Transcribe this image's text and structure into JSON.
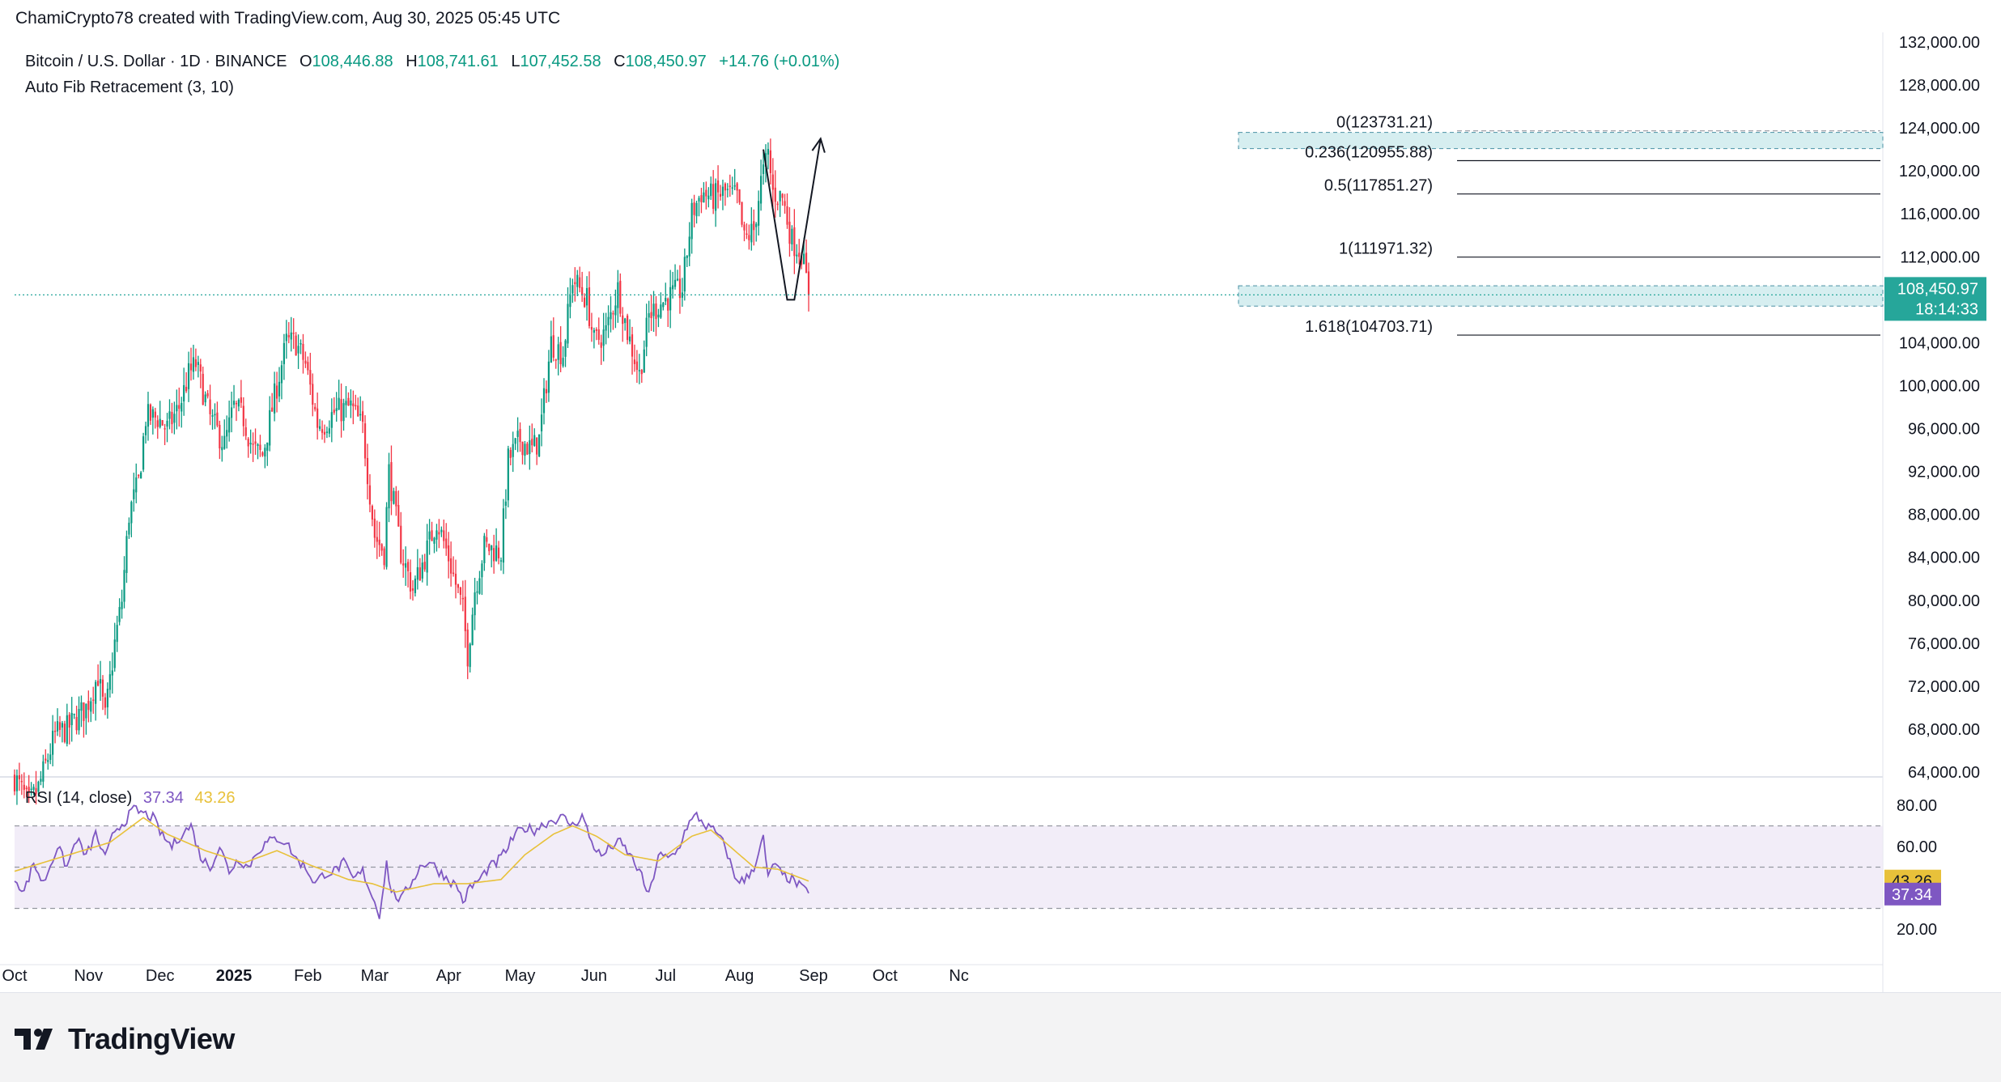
{
  "header": {
    "credit": "ChamiCrypto78 created with TradingView.com, Aug 30, 2025 05:45 UTC"
  },
  "legend": {
    "symbol": "Bitcoin / U.S. Dollar · 1D · BINANCE",
    "open_label": "O",
    "open": "108,446.88",
    "high_label": "H",
    "high": "108,741.61",
    "low_label": "L",
    "low": "107,452.58",
    "close_label": "C",
    "close": "108,450.97",
    "change": "+14.76 (+0.01%)",
    "indicator": "Auto Fib Retracement (3, 10)"
  },
  "rsi_legend": {
    "label": "RSI (14, close)",
    "rsi_value": "37.34",
    "ma_value": "43.26"
  },
  "price_badge": {
    "price": "108,450.97",
    "countdown": "18:14:33"
  },
  "rsi_badges": {
    "ma": "43.26",
    "rsi": "37.34"
  },
  "footer": {
    "brand": "TradingView"
  },
  "colors": {
    "up": "#089981",
    "down": "#f23645",
    "rsi": "#7e57c2",
    "rsi_ma": "#e8c13a",
    "rsi_band": "#ede7f6",
    "fib_zone": "#d6eef0",
    "price_badge": "#26a69a"
  },
  "chart_data": [
    {
      "type": "candlestick",
      "title": "Bitcoin / U.S. Dollar · 1D · BINANCE",
      "ylim": [
        64000,
        132000
      ],
      "y_ticks": [
        {
          "v": 132000,
          "label": "132,000.00"
        },
        {
          "v": 128000,
          "label": "128,000.00"
        },
        {
          "v": 124000,
          "label": "124,000.00"
        },
        {
          "v": 120000,
          "label": "120,000.00"
        },
        {
          "v": 116000,
          "label": "116,000.00"
        },
        {
          "v": 112000,
          "label": "112,000.00"
        },
        {
          "v": 104000,
          "label": "104,000.00"
        },
        {
          "v": 100000,
          "label": "100,000.00"
        },
        {
          "v": 96000,
          "label": "96,000.00"
        },
        {
          "v": 92000,
          "label": "92,000.00"
        },
        {
          "v": 88000,
          "label": "88,000.00"
        },
        {
          "v": 84000,
          "label": "84,000.00"
        },
        {
          "v": 80000,
          "label": "80,000.00"
        },
        {
          "v": 76000,
          "label": "76,000.00"
        },
        {
          "v": 72000,
          "label": "72,000.00"
        },
        {
          "v": 68000,
          "label": "68,000.00"
        },
        {
          "v": 64000,
          "label": "64,000.00"
        }
      ],
      "x_ticks": [
        {
          "day": 0,
          "label": "Oct"
        },
        {
          "day": 31,
          "label": "Nov"
        },
        {
          "day": 61,
          "label": "Dec"
        },
        {
          "day": 92,
          "label": "2025"
        },
        {
          "day": 123,
          "label": "Feb"
        },
        {
          "day": 151,
          "label": "Mar"
        },
        {
          "day": 182,
          "label": "Apr"
        },
        {
          "day": 212,
          "label": "May"
        },
        {
          "day": 243,
          "label": "Jun"
        },
        {
          "day": 273,
          "label": "Jul"
        },
        {
          "day": 304,
          "label": "Aug"
        },
        {
          "day": 335,
          "label": "Sep"
        },
        {
          "day": 365,
          "label": "Oct"
        },
        {
          "day": 396,
          "label": "Nc"
        }
      ],
      "day_range": [
        0,
        397
      ],
      "start_date": "2024-10-01",
      "anchors": [
        [
          0,
          63500
        ],
        [
          6,
          61000
        ],
        [
          10,
          62500
        ],
        [
          17,
          67500
        ],
        [
          22,
          68000
        ],
        [
          30,
          70000
        ],
        [
          35,
          73000
        ],
        [
          38,
          69000
        ],
        [
          42,
          76000
        ],
        [
          45,
          80000
        ],
        [
          48,
          88000
        ],
        [
          52,
          91000
        ],
        [
          55,
          97000
        ],
        [
          60,
          97000
        ],
        [
          64,
          96000
        ],
        [
          69,
          98000
        ],
        [
          73,
          101000
        ],
        [
          76,
          102000
        ],
        [
          82,
          97000
        ],
        [
          88,
          94500
        ],
        [
          92,
          98000
        ],
        [
          96,
          97000
        ],
        [
          100,
          94000
        ],
        [
          104,
          93500
        ],
        [
          110,
          100000
        ],
        [
          114,
          104000
        ],
        [
          118,
          104000
        ],
        [
          122,
          102000
        ],
        [
          127,
          96500
        ],
        [
          130,
          96500
        ],
        [
          134,
          97500
        ],
        [
          141,
          98000
        ],
        [
          146,
          96000
        ],
        [
          151,
          86000
        ],
        [
          155,
          84500
        ],
        [
          157,
          92000
        ],
        [
          162,
          84500
        ],
        [
          167,
          81000
        ],
        [
          172,
          84000
        ],
        [
          177,
          87500
        ],
        [
          182,
          84000
        ],
        [
          188,
          79000
        ],
        [
          190,
          75000
        ],
        [
          193,
          81000
        ],
        [
          197,
          85000
        ],
        [
          204,
          84500
        ],
        [
          207,
          93000
        ],
        [
          212,
          95000
        ],
        [
          217,
          94000
        ],
        [
          220,
          95000
        ],
        [
          225,
          104000
        ],
        [
          230,
          103000
        ],
        [
          234,
          110000
        ],
        [
          240,
          108000
        ],
        [
          243,
          104000
        ],
        [
          248,
          105000
        ],
        [
          253,
          109000
        ],
        [
          257,
          105000
        ],
        [
          262,
          101000
        ],
        [
          266,
          106500
        ],
        [
          270,
          107500
        ],
        [
          273,
          108000
        ],
        [
          280,
          109000
        ],
        [
          284,
          116000
        ],
        [
          288,
          118000
        ],
        [
          293,
          117500
        ],
        [
          298,
          118000
        ],
        [
          303,
          117500
        ],
        [
          306,
          113500
        ],
        [
          310,
          114500
        ],
        [
          313,
          119000
        ],
        [
          316,
          121500
        ],
        [
          318,
          118000
        ],
        [
          322,
          117500
        ],
        [
          326,
          113500
        ],
        [
          330,
          112500
        ],
        [
          333,
          108500
        ]
      ],
      "close": 108450.97,
      "fib_levels": [
        {
          "ratio": "0",
          "price": 123731.21,
          "label": "0(123731.21)"
        },
        {
          "ratio": "0.236",
          "price": 120955.88,
          "label": "0.236(120955.88)"
        },
        {
          "ratio": "0.5",
          "price": 117851.27,
          "label": "0.5(117851.27)"
        },
        {
          "ratio": "1",
          "price": 111971.32,
          "label": "1(111971.32)"
        },
        {
          "ratio": "1.618",
          "price": 104703.71,
          "label": "1.618(104703.71)"
        }
      ],
      "annotations": [
        {
          "type": "arrow",
          "points": [
            [
              314,
              122000
            ],
            [
              324,
              108000
            ],
            [
              327,
              108000
            ],
            [
              338,
              123000
            ]
          ]
        }
      ]
    },
    {
      "type": "line",
      "title": "RSI (14, close)",
      "ylim": [
        15,
        85
      ],
      "y_ticks": [
        {
          "v": 80,
          "label": "80.00"
        },
        {
          "v": 60,
          "label": "60.00"
        },
        {
          "v": 20,
          "label": "20.00"
        }
      ],
      "band": [
        30,
        70
      ],
      "midline": 50,
      "series": [
        {
          "name": "RSI",
          "values_anchors": [
            [
              0,
              45
            ],
            [
              4,
              38
            ],
            [
              8,
              52
            ],
            [
              12,
              42
            ],
            [
              18,
              60
            ],
            [
              22,
              50
            ],
            [
              26,
              64
            ],
            [
              30,
              55
            ],
            [
              34,
              66
            ],
            [
              38,
              54
            ],
            [
              42,
              68
            ],
            [
              46,
              72
            ],
            [
              50,
              78
            ],
            [
              54,
              76
            ],
            [
              58,
              74
            ],
            [
              62,
              65
            ],
            [
              66,
              60
            ],
            [
              70,
              66
            ],
            [
              74,
              70
            ],
            [
              78,
              55
            ],
            [
              82,
              50
            ],
            [
              86,
              60
            ],
            [
              90,
              48
            ],
            [
              94,
              54
            ],
            [
              98,
              50
            ],
            [
              102,
              58
            ],
            [
              106,
              62
            ],
            [
              110,
              64
            ],
            [
              114,
              62
            ],
            [
              118,
              54
            ],
            [
              122,
              50
            ],
            [
              126,
              42
            ],
            [
              130,
              47
            ],
            [
              134,
              48
            ],
            [
              138,
              52
            ],
            [
              142,
              44
            ],
            [
              146,
              48
            ],
            [
              150,
              36
            ],
            [
              153,
              27
            ],
            [
              156,
              52
            ],
            [
              158,
              38
            ],
            [
              162,
              34
            ],
            [
              166,
              42
            ],
            [
              170,
              50
            ],
            [
              174,
              53
            ],
            [
              178,
              48
            ],
            [
              182,
              44
            ],
            [
              186,
              40
            ],
            [
              188,
              33
            ],
            [
              191,
              40
            ],
            [
              195,
              44
            ],
            [
              199,
              50
            ],
            [
              202,
              52
            ],
            [
              206,
              58
            ],
            [
              210,
              66
            ],
            [
              214,
              69
            ],
            [
              218,
              68
            ],
            [
              222,
              71
            ],
            [
              226,
              73
            ],
            [
              230,
              74
            ],
            [
              234,
              70
            ],
            [
              238,
              75
            ],
            [
              242,
              62
            ],
            [
              246,
              55
            ],
            [
              250,
              60
            ],
            [
              254,
              62
            ],
            [
              258,
              56
            ],
            [
              262,
              48
            ],
            [
              266,
              36
            ],
            [
              270,
              56
            ],
            [
              274,
              54
            ],
            [
              278,
              58
            ],
            [
              282,
              70
            ],
            [
              286,
              75
            ],
            [
              290,
              70
            ],
            [
              294,
              67
            ],
            [
              298,
              60
            ],
            [
              302,
              45
            ],
            [
              306,
              43
            ],
            [
              310,
              50
            ],
            [
              314,
              64
            ],
            [
              316,
              44
            ],
            [
              318,
              52
            ],
            [
              322,
              46
            ],
            [
              326,
              44
            ],
            [
              330,
              40
            ],
            [
              333,
              37.34
            ]
          ]
        },
        {
          "name": "MA",
          "values_anchors": [
            [
              0,
              48
            ],
            [
              20,
              55
            ],
            [
              40,
              62
            ],
            [
              54,
              74
            ],
            [
              64,
              66
            ],
            [
              80,
              58
            ],
            [
              96,
              52
            ],
            [
              110,
              58
            ],
            [
              124,
              51
            ],
            [
              140,
              44
            ],
            [
              150,
              42
            ],
            [
              160,
              38
            ],
            [
              176,
              42
            ],
            [
              190,
              42
            ],
            [
              204,
              44
            ],
            [
              214,
              56
            ],
            [
              226,
              66
            ],
            [
              234,
              70
            ],
            [
              244,
              65
            ],
            [
              256,
              56
            ],
            [
              270,
              53
            ],
            [
              284,
              65
            ],
            [
              292,
              68
            ],
            [
              300,
              60
            ],
            [
              310,
              50
            ],
            [
              320,
              49
            ],
            [
              333,
              43.26
            ]
          ]
        }
      ]
    }
  ]
}
